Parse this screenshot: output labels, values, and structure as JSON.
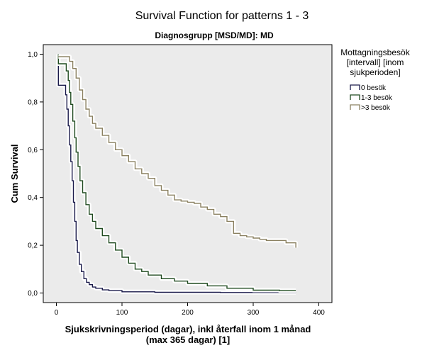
{
  "chart_data": {
    "type": "line",
    "title": "Survival Function for patterns 1 - 3",
    "subtitle": "Diagnosgrupp [MSD/MD]: MD",
    "xlabel_lines": [
      "Sjukskrivningsperiod (dagar), inkl återfall inom 1 månad",
      "(max 365 dagar) [1]"
    ],
    "ylabel": "Cum Survival",
    "xlim": [
      -20,
      420
    ],
    "ylim": [
      -0.04,
      1.04
    ],
    "x_ticks": [
      0,
      100,
      200,
      300,
      400
    ],
    "x_tick_labels": [
      "0",
      "100",
      "200",
      "300",
      "400"
    ],
    "y_ticks": [
      0,
      0.2,
      0.4,
      0.6,
      0.8,
      1.0
    ],
    "y_tick_labels": [
      "0,0",
      "0,2",
      "0,4",
      "0,6",
      "0,8",
      "1,0"
    ],
    "grid": false,
    "legend": {
      "title_lines": [
        "Mottagningsbesök",
        "[intervall] [inom",
        "sjukperioden]"
      ],
      "placement": "right"
    },
    "series": [
      {
        "name": "0 besök",
        "color": "#1a1a4a",
        "points": [
          [
            3,
            1.0
          ],
          [
            3,
            0.87
          ],
          [
            14,
            0.87
          ],
          [
            14,
            0.83
          ],
          [
            16,
            0.77
          ],
          [
            18,
            0.7
          ],
          [
            20,
            0.62
          ],
          [
            22,
            0.55
          ],
          [
            24,
            0.47
          ],
          [
            26,
            0.38
          ],
          [
            28,
            0.3
          ],
          [
            30,
            0.22
          ],
          [
            32,
            0.17
          ],
          [
            35,
            0.12
          ],
          [
            38,
            0.09
          ],
          [
            42,
            0.06
          ],
          [
            46,
            0.045
          ],
          [
            50,
            0.035
          ],
          [
            55,
            0.025
          ],
          [
            60,
            0.02
          ],
          [
            70,
            0.013
          ],
          [
            80,
            0.01
          ],
          [
            100,
            0.005
          ],
          [
            150,
            0.003
          ],
          [
            250,
            0.002
          ],
          [
            365,
            0.002
          ]
        ]
      },
      {
        "name": "1-3 besök",
        "color": "#1f4a1f",
        "points": [
          [
            3,
            1.0
          ],
          [
            3,
            0.96
          ],
          [
            10,
            0.96
          ],
          [
            15,
            0.93
          ],
          [
            18,
            0.89
          ],
          [
            20,
            0.84
          ],
          [
            22,
            0.79
          ],
          [
            25,
            0.72
          ],
          [
            28,
            0.65
          ],
          [
            30,
            0.59
          ],
          [
            33,
            0.53
          ],
          [
            36,
            0.47
          ],
          [
            40,
            0.42
          ],
          [
            45,
            0.37
          ],
          [
            50,
            0.33
          ],
          [
            55,
            0.3
          ],
          [
            60,
            0.27
          ],
          [
            70,
            0.24
          ],
          [
            80,
            0.21
          ],
          [
            90,
            0.18
          ],
          [
            100,
            0.15
          ],
          [
            110,
            0.125
          ],
          [
            120,
            0.1
          ],
          [
            130,
            0.09
          ],
          [
            140,
            0.075
          ],
          [
            160,
            0.06
          ],
          [
            180,
            0.05
          ],
          [
            200,
            0.04
          ],
          [
            230,
            0.03
          ],
          [
            260,
            0.02
          ],
          [
            300,
            0.012
          ],
          [
            340,
            0.01
          ],
          [
            365,
            0.01
          ]
        ]
      },
      {
        "name": ">3 besök",
        "color": "#8a8060",
        "points": [
          [
            3,
            0.99
          ],
          [
            15,
            0.99
          ],
          [
            20,
            0.97
          ],
          [
            25,
            0.94
          ],
          [
            30,
            0.9
          ],
          [
            35,
            0.85
          ],
          [
            40,
            0.81
          ],
          [
            45,
            0.77
          ],
          [
            50,
            0.74
          ],
          [
            55,
            0.71
          ],
          [
            60,
            0.69
          ],
          [
            70,
            0.66
          ],
          [
            80,
            0.63
          ],
          [
            90,
            0.6
          ],
          [
            100,
            0.575
          ],
          [
            110,
            0.55
          ],
          [
            120,
            0.52
          ],
          [
            130,
            0.5
          ],
          [
            140,
            0.48
          ],
          [
            150,
            0.45
          ],
          [
            160,
            0.43
          ],
          [
            170,
            0.41
          ],
          [
            180,
            0.39
          ],
          [
            190,
            0.385
          ],
          [
            200,
            0.38
          ],
          [
            210,
            0.375
          ],
          [
            220,
            0.36
          ],
          [
            230,
            0.35
          ],
          [
            240,
            0.33
          ],
          [
            250,
            0.32
          ],
          [
            260,
            0.3
          ],
          [
            270,
            0.25
          ],
          [
            280,
            0.24
          ],
          [
            290,
            0.235
          ],
          [
            300,
            0.23
          ],
          [
            310,
            0.225
          ],
          [
            320,
            0.22
          ],
          [
            335,
            0.22
          ],
          [
            350,
            0.21
          ],
          [
            360,
            0.21
          ],
          [
            365,
            0.19
          ]
        ]
      }
    ]
  }
}
